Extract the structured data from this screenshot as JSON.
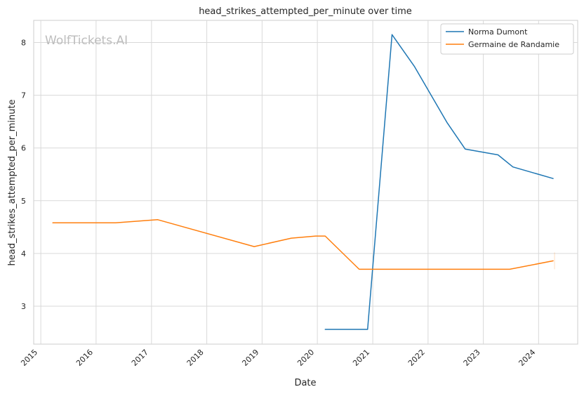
{
  "chart_data": {
    "type": "line",
    "title": "head_strikes_attempted_per_minute over time",
    "xlabel": "Date",
    "ylabel": "head_strikes_attempted_per_minute",
    "watermark": "WolfTickets.AI",
    "x_ticks": [
      "2015",
      "2016",
      "2017",
      "2018",
      "2019",
      "2020",
      "2021",
      "2022",
      "2023",
      "2024"
    ],
    "y_ticks": [
      3,
      4,
      5,
      6,
      7,
      8
    ],
    "xlim": [
      "2014-11-15",
      "2024-09-15"
    ],
    "ylim": [
      2.28,
      8.42
    ],
    "grid": true,
    "legend_position": "top-right",
    "series": [
      {
        "name": "Norma Dumont",
        "color": "#1f77b4",
        "points": [
          {
            "x": "2020-02-22",
            "y": 2.56
          },
          {
            "x": "2020-11-28",
            "y": 2.56
          },
          {
            "x": "2021-05-08",
            "y": 8.15
          },
          {
            "x": "2021-10-02",
            "y": 7.55
          },
          {
            "x": "2022-05-07",
            "y": 6.48
          },
          {
            "x": "2022-09-03",
            "y": 5.98
          },
          {
            "x": "2023-04-08",
            "y": 5.87
          },
          {
            "x": "2023-07-15",
            "y": 5.64
          },
          {
            "x": "2024-04-06",
            "y": 5.42
          }
        ]
      },
      {
        "name": "Germaine de Randamie",
        "color": "#ff7f0e",
        "points": [
          {
            "x": "2015-03-21",
            "y": 4.58
          },
          {
            "x": "2016-05-08",
            "y": 4.58
          },
          {
            "x": "2017-02-11",
            "y": 4.64
          },
          {
            "x": "2018-11-10",
            "y": 4.13
          },
          {
            "x": "2019-07-13",
            "y": 4.29
          },
          {
            "x": "2019-12-21",
            "y": 4.33
          },
          {
            "x": "2020-02-22",
            "y": 4.33
          },
          {
            "x": "2020-10-03",
            "y": 3.7
          },
          {
            "x": "2023-06-24",
            "y": 3.7
          },
          {
            "x": "2024-04-06",
            "y": 3.86
          }
        ]
      }
    ]
  }
}
